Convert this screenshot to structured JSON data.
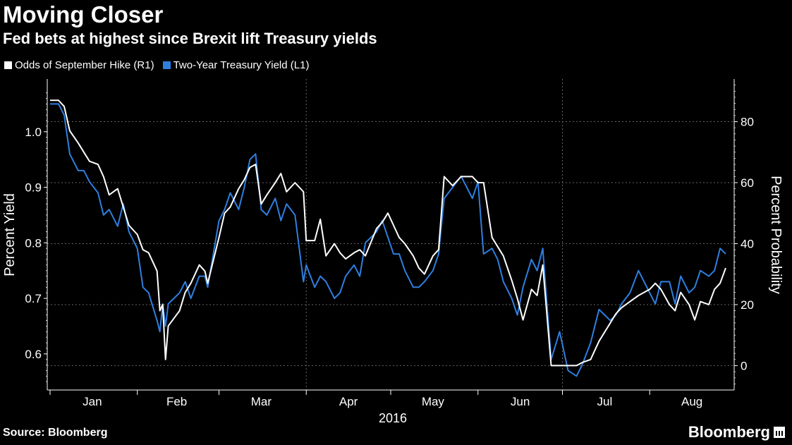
{
  "header": {
    "title": "Moving Closer",
    "subtitle": "Fed bets at highest since Brexit lift Treasury yields"
  },
  "footer": {
    "source": "Source: Bloomberg",
    "brand": "Bloomberg"
  },
  "colors": {
    "background": "#000000",
    "odds_line": "#ffffff",
    "yield_line": "#2f7fe0",
    "grid": "#666666"
  },
  "chart_data": {
    "type": "line",
    "xlabel": "2016",
    "x_tick_labels": [
      "Jan",
      "Feb",
      "Mar",
      "Apr",
      "May",
      "Jun",
      "Jul",
      "Aug"
    ],
    "left_axis": {
      "label": "Percent Yield",
      "ticks": [
        "0.6",
        "0.7",
        "0.8",
        "0.9",
        "1.0"
      ],
      "range": [
        0.535,
        1.095
      ]
    },
    "right_axis": {
      "label": "Percent Probability",
      "ticks": [
        "0",
        "20",
        "40",
        "60",
        "80"
      ],
      "range": [
        -8,
        94
      ]
    },
    "x_range": [
      "2015-12-31",
      "2016-08-31"
    ],
    "grid": "horizontal dashed",
    "legend_position": "top-left",
    "series": [
      {
        "name": "Odds of September Hike (R1)",
        "axis": "right",
        "color": "#ffffff",
        "points": [
          [
            "2016-01-01",
            87
          ],
          [
            "2016-01-04",
            87
          ],
          [
            "2016-01-06",
            85
          ],
          [
            "2016-01-08",
            77
          ],
          [
            "2016-01-11",
            73
          ],
          [
            "2016-01-13",
            70
          ],
          [
            "2016-01-15",
            67
          ],
          [
            "2016-01-18",
            66
          ],
          [
            "2016-01-20",
            62
          ],
          [
            "2016-01-22",
            56
          ],
          [
            "2016-01-25",
            58
          ],
          [
            "2016-01-27",
            52
          ],
          [
            "2016-01-29",
            46
          ],
          [
            "2016-02-01",
            43
          ],
          [
            "2016-02-03",
            38
          ],
          [
            "2016-02-05",
            37
          ],
          [
            "2016-02-08",
            31
          ],
          [
            "2016-02-09",
            18
          ],
          [
            "2016-02-10",
            20
          ],
          [
            "2016-02-11",
            2
          ],
          [
            "2016-02-12",
            13
          ],
          [
            "2016-02-16",
            18
          ],
          [
            "2016-02-18",
            24
          ],
          [
            "2016-02-20",
            27
          ],
          [
            "2016-02-23",
            33
          ],
          [
            "2016-02-25",
            31
          ],
          [
            "2016-02-26",
            27
          ],
          [
            "2016-03-01",
            42
          ],
          [
            "2016-03-03",
            50
          ],
          [
            "2016-03-05",
            52
          ],
          [
            "2016-03-08",
            58
          ],
          [
            "2016-03-10",
            61
          ],
          [
            "2016-03-12",
            65
          ],
          [
            "2016-03-14",
            66
          ],
          [
            "2016-03-16",
            53
          ],
          [
            "2016-03-18",
            56
          ],
          [
            "2016-03-21",
            60
          ],
          [
            "2016-03-23",
            63
          ],
          [
            "2016-03-25",
            57
          ],
          [
            "2016-03-28",
            60
          ],
          [
            "2016-03-31",
            57
          ],
          [
            "2016-04-01",
            41
          ],
          [
            "2016-04-04",
            41
          ],
          [
            "2016-04-06",
            48
          ],
          [
            "2016-04-08",
            36
          ],
          [
            "2016-04-11",
            40
          ],
          [
            "2016-04-13",
            37
          ],
          [
            "2016-04-15",
            35
          ],
          [
            "2016-04-18",
            37
          ],
          [
            "2016-04-20",
            38
          ],
          [
            "2016-04-22",
            36
          ],
          [
            "2016-04-26",
            45
          ],
          [
            "2016-04-28",
            47
          ],
          [
            "2016-04-30",
            50
          ],
          [
            "2016-05-02",
            46
          ],
          [
            "2016-05-04",
            42
          ],
          [
            "2016-05-06",
            40
          ],
          [
            "2016-05-09",
            36
          ],
          [
            "2016-05-11",
            32
          ],
          [
            "2016-05-13",
            30
          ],
          [
            "2016-05-16",
            36
          ],
          [
            "2016-05-18",
            38
          ],
          [
            "2016-05-20",
            62
          ],
          [
            "2016-05-23",
            59
          ],
          [
            "2016-05-26",
            62
          ],
          [
            "2016-05-30",
            62
          ],
          [
            "2016-06-01",
            60
          ],
          [
            "2016-06-03",
            60
          ],
          [
            "2016-06-06",
            42
          ],
          [
            "2016-06-08",
            39
          ],
          [
            "2016-06-10",
            36
          ],
          [
            "2016-06-13",
            28
          ],
          [
            "2016-06-15",
            22
          ],
          [
            "2016-06-17",
            15
          ],
          [
            "2016-06-20",
            25
          ],
          [
            "2016-06-22",
            23
          ],
          [
            "2016-06-24",
            33
          ],
          [
            "2016-06-27",
            0
          ],
          [
            "2016-06-30",
            0
          ],
          [
            "2016-07-03",
            0
          ],
          [
            "2016-07-06",
            0
          ],
          [
            "2016-07-08",
            1
          ],
          [
            "2016-07-11",
            2
          ],
          [
            "2016-07-14",
            8
          ],
          [
            "2016-07-18",
            14
          ],
          [
            "2016-07-20",
            17
          ],
          [
            "2016-07-22",
            19
          ],
          [
            "2016-07-25",
            21
          ],
          [
            "2016-07-28",
            23
          ],
          [
            "2016-08-01",
            25
          ],
          [
            "2016-08-03",
            27
          ],
          [
            "2016-08-05",
            25
          ],
          [
            "2016-08-08",
            20
          ],
          [
            "2016-08-10",
            18
          ],
          [
            "2016-08-12",
            24
          ],
          [
            "2016-08-15",
            20
          ],
          [
            "2016-08-17",
            15
          ],
          [
            "2016-08-19",
            21
          ],
          [
            "2016-08-22",
            20
          ],
          [
            "2016-08-24",
            25
          ],
          [
            "2016-08-26",
            27
          ],
          [
            "2016-08-28",
            32
          ]
        ]
      },
      {
        "name": "Two-Year Treasury Yield (L1)",
        "axis": "left",
        "color": "#2f7fe0",
        "points": [
          [
            "2016-01-01",
            1.05
          ],
          [
            "2016-01-04",
            1.05
          ],
          [
            "2016-01-06",
            1.03
          ],
          [
            "2016-01-08",
            0.96
          ],
          [
            "2016-01-11",
            0.93
          ],
          [
            "2016-01-13",
            0.93
          ],
          [
            "2016-01-15",
            0.91
          ],
          [
            "2016-01-18",
            0.89
          ],
          [
            "2016-01-20",
            0.85
          ],
          [
            "2016-01-22",
            0.86
          ],
          [
            "2016-01-25",
            0.83
          ],
          [
            "2016-01-27",
            0.87
          ],
          [
            "2016-01-29",
            0.82
          ],
          [
            "2016-02-01",
            0.79
          ],
          [
            "2016-02-03",
            0.72
          ],
          [
            "2016-02-05",
            0.71
          ],
          [
            "2016-02-08",
            0.66
          ],
          [
            "2016-02-09",
            0.64
          ],
          [
            "2016-02-10",
            0.69
          ],
          [
            "2016-02-11",
            0.65
          ],
          [
            "2016-02-12",
            0.69
          ],
          [
            "2016-02-16",
            0.71
          ],
          [
            "2016-02-18",
            0.73
          ],
          [
            "2016-02-20",
            0.7
          ],
          [
            "2016-02-23",
            0.74
          ],
          [
            "2016-02-25",
            0.74
          ],
          [
            "2016-02-26",
            0.72
          ],
          [
            "2016-03-01",
            0.84
          ],
          [
            "2016-03-03",
            0.86
          ],
          [
            "2016-03-05",
            0.89
          ],
          [
            "2016-03-08",
            0.86
          ],
          [
            "2016-03-10",
            0.9
          ],
          [
            "2016-03-12",
            0.95
          ],
          [
            "2016-03-14",
            0.96
          ],
          [
            "2016-03-16",
            0.86
          ],
          [
            "2016-03-18",
            0.85
          ],
          [
            "2016-03-21",
            0.88
          ],
          [
            "2016-03-23",
            0.84
          ],
          [
            "2016-03-25",
            0.87
          ],
          [
            "2016-03-28",
            0.85
          ],
          [
            "2016-03-31",
            0.73
          ],
          [
            "2016-04-01",
            0.76
          ],
          [
            "2016-04-04",
            0.72
          ],
          [
            "2016-04-06",
            0.74
          ],
          [
            "2016-04-08",
            0.73
          ],
          [
            "2016-04-11",
            0.7
          ],
          [
            "2016-04-13",
            0.71
          ],
          [
            "2016-04-15",
            0.74
          ],
          [
            "2016-04-18",
            0.76
          ],
          [
            "2016-04-20",
            0.74
          ],
          [
            "2016-04-22",
            0.8
          ],
          [
            "2016-04-26",
            0.82
          ],
          [
            "2016-04-28",
            0.84
          ],
          [
            "2016-04-30",
            0.81
          ],
          [
            "2016-05-02",
            0.78
          ],
          [
            "2016-05-04",
            0.78
          ],
          [
            "2016-05-06",
            0.75
          ],
          [
            "2016-05-09",
            0.72
          ],
          [
            "2016-05-11",
            0.72
          ],
          [
            "2016-05-13",
            0.73
          ],
          [
            "2016-05-16",
            0.75
          ],
          [
            "2016-05-18",
            0.78
          ],
          [
            "2016-05-20",
            0.88
          ],
          [
            "2016-05-23",
            0.9
          ],
          [
            "2016-05-26",
            0.92
          ],
          [
            "2016-05-30",
            0.88
          ],
          [
            "2016-06-01",
            0.91
          ],
          [
            "2016-06-03",
            0.78
          ],
          [
            "2016-06-06",
            0.79
          ],
          [
            "2016-06-08",
            0.77
          ],
          [
            "2016-06-10",
            0.73
          ],
          [
            "2016-06-13",
            0.7
          ],
          [
            "2016-06-15",
            0.67
          ],
          [
            "2016-06-17",
            0.72
          ],
          [
            "2016-06-20",
            0.77
          ],
          [
            "2016-06-22",
            0.75
          ],
          [
            "2016-06-24",
            0.79
          ],
          [
            "2016-06-27",
            0.59
          ],
          [
            "2016-06-30",
            0.64
          ],
          [
            "2016-07-03",
            0.57
          ],
          [
            "2016-07-06",
            0.56
          ],
          [
            "2016-07-08",
            0.58
          ],
          [
            "2016-07-11",
            0.62
          ],
          [
            "2016-07-14",
            0.68
          ],
          [
            "2016-07-18",
            0.66
          ],
          [
            "2016-07-20",
            0.67
          ],
          [
            "2016-07-22",
            0.69
          ],
          [
            "2016-07-25",
            0.71
          ],
          [
            "2016-07-28",
            0.75
          ],
          [
            "2016-08-01",
            0.71
          ],
          [
            "2016-08-03",
            0.69
          ],
          [
            "2016-08-05",
            0.73
          ],
          [
            "2016-08-08",
            0.73
          ],
          [
            "2016-08-10",
            0.69
          ],
          [
            "2016-08-12",
            0.74
          ],
          [
            "2016-08-15",
            0.71
          ],
          [
            "2016-08-17",
            0.72
          ],
          [
            "2016-08-19",
            0.75
          ],
          [
            "2016-08-22",
            0.74
          ],
          [
            "2016-08-24",
            0.75
          ],
          [
            "2016-08-26",
            0.79
          ],
          [
            "2016-08-28",
            0.78
          ]
        ]
      }
    ]
  }
}
